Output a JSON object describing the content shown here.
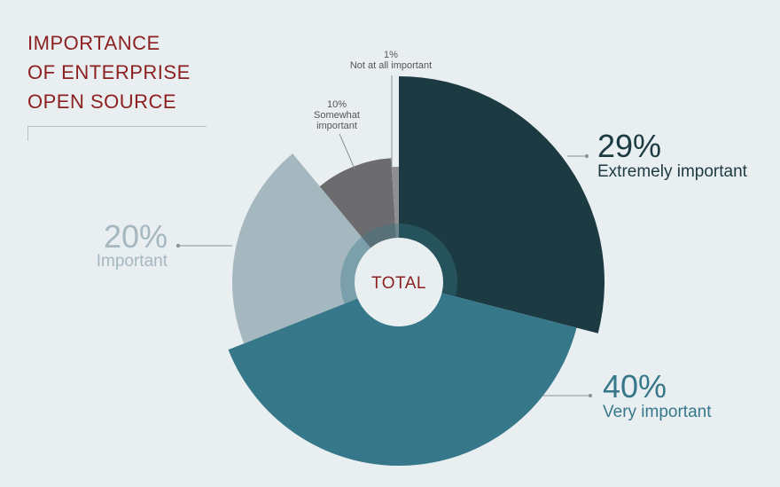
{
  "title_lines": [
    "IMPORTANCE",
    "OF ENTERPRISE",
    "OPEN SOURCE"
  ],
  "center_label": "TOTAL",
  "chart_data": {
    "type": "pie",
    "title": "IMPORTANCE OF ENTERPRISE OPEN SOURCE",
    "slices": [
      {
        "label": "Extremely important",
        "value_label": "29%",
        "value": 29,
        "color": "#1c3a42"
      },
      {
        "label": "Very important",
        "value_label": "40%",
        "value": 40,
        "color": "#36788a"
      },
      {
        "label": "Important",
        "value_label": "20%",
        "value": 20,
        "color": "#a5b8c0"
      },
      {
        "label": "Somewhat important",
        "value_label": "10%",
        "value": 10,
        "color": "#6c6b6d"
      },
      {
        "label": "Not at all important",
        "value_label": "1%",
        "value": 1,
        "color": "#8f8e90"
      }
    ],
    "label_lines": {
      "somewhat": [
        "Somewhat",
        "important"
      ],
      "not_at_all": [
        "Not at all important"
      ]
    },
    "title_color": "#8c1f1f",
    "background": "#e9eef1"
  }
}
